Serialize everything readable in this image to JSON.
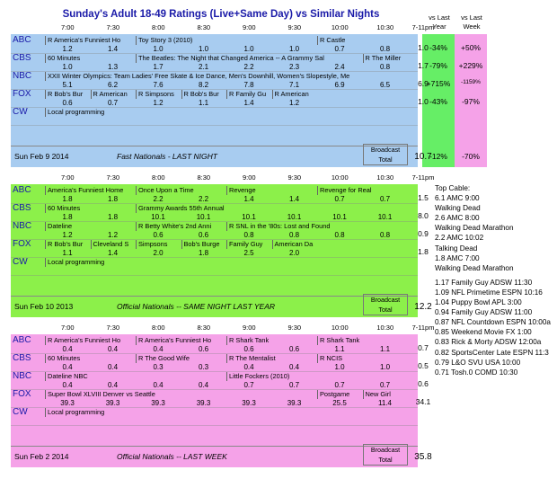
{
  "title": "Sunday's Adult 18-49 Ratings (Live+Same Day) vs Similar Nights",
  "times": [
    "7:00",
    "7:30",
    "8:00",
    "8:30",
    "9:00",
    "9:30",
    "10:00",
    "10:30",
    "7-11pm"
  ],
  "compare_headers": {
    "vs_last_year": "vs Last\nYear",
    "vs_last_week": "vs Last\nWeek"
  },
  "broadcast_total_label": "Broadcast\nTotal",
  "panels": [
    {
      "color": "#a8ccf0",
      "date": "Sun Feb 9 2014",
      "subtitle": "Fast Nationals - LAST NIGHT",
      "broadcast_total": "10.7",
      "total_vs_year": "-12%",
      "total_vs_week": "-70%",
      "rows": [
        {
          "network": "ABC",
          "programs": [
            {
              "name": "R America's Funniest Ho",
              "start": 0,
              "span": 2
            },
            {
              "name": "Toy Story 3 (2010)",
              "start": 2,
              "span": 4
            },
            {
              "name": "R Castle",
              "start": 6,
              "span": 2
            }
          ],
          "values": [
            "1.2",
            "1.4",
            "1.0",
            "1.0",
            "1.0",
            "1.0",
            "0.7",
            "0.8"
          ],
          "total": "1.0",
          "vs_year": "-34%",
          "vs_week": "+50%"
        },
        {
          "network": "CBS",
          "programs": [
            {
              "name": "60 Minutes",
              "start": 0,
              "span": 2
            },
            {
              "name": "The Beatles: The Night that Changed America -- A Grammy Sal",
              "start": 2,
              "span": 5
            },
            {
              "name": "R The Miller",
              "start": 7,
              "span": 1
            }
          ],
          "values": [
            "1.0",
            "1.3",
            "1.7",
            "2.1",
            "2.2",
            "2.3",
            "2.4",
            "0.8"
          ],
          "total": "1.7",
          "vs_year": "-79%",
          "vs_week": "+229%"
        },
        {
          "network": "NBC",
          "programs": [
            {
              "name": "XXII Winter Olympics: Team Ladies' Free Skate & Ice Dance, Men's Downhill, Women's Slopestyle, Me",
              "start": 0,
              "span": 8
            }
          ],
          "values": [
            "5.1",
            "6.2",
            "7.6",
            "8.2",
            "7.8",
            "7.1",
            "6.9",
            "6.5"
          ],
          "total": "6.9",
          "vs_year": "+715%",
          "vs_week": "-1159%"
        },
        {
          "network": "FOX",
          "programs": [
            {
              "name": "R Bob's Bur",
              "start": 0,
              "span": 1
            },
            {
              "name": "R American",
              "start": 1,
              "span": 1
            },
            {
              "name": "R Simpsons",
              "start": 2,
              "span": 1
            },
            {
              "name": "R Bob's Bur",
              "start": 3,
              "span": 1
            },
            {
              "name": "R Family Gu",
              "start": 4,
              "span": 1
            },
            {
              "name": "R American",
              "start": 5,
              "span": 1
            }
          ],
          "values": [
            "0.6",
            "0.7",
            "1.2",
            "1.1",
            "1.4",
            "1.2",
            "",
            ""
          ],
          "total": "1.0",
          "vs_year": "-43%",
          "vs_week": "-97%"
        },
        {
          "network": "CW",
          "programs": [
            {
              "name": "Local programming",
              "start": 0,
              "span": 8
            }
          ],
          "values": [
            "",
            "",
            "",
            "",
            "",
            "",
            "",
            ""
          ],
          "total": "",
          "vs_year": "",
          "vs_week": ""
        }
      ]
    },
    {
      "color": "#8cf04a",
      "date": "Sun Feb 10 2013",
      "subtitle": "Official Nationals -- SAME NIGHT LAST YEAR",
      "broadcast_total": "12.2",
      "rows": [
        {
          "network": "ABC",
          "programs": [
            {
              "name": "America's Funniest Home",
              "start": 0,
              "span": 2
            },
            {
              "name": "Once Upon a Time",
              "start": 2,
              "span": 2
            },
            {
              "name": "Revenge",
              "start": 4,
              "span": 2
            },
            {
              "name": "Revenge for Real",
              "start": 6,
              "span": 2
            }
          ],
          "values": [
            "1.8",
            "1.8",
            "2.2",
            "2.2",
            "1.4",
            "1.4",
            "0.7",
            "0.7"
          ],
          "total": "1.5"
        },
        {
          "network": "CBS",
          "programs": [
            {
              "name": "60 Minutes",
              "start": 0,
              "span": 2
            },
            {
              "name": "Grammy Awards 55th Annual",
              "start": 2,
              "span": 6
            }
          ],
          "values": [
            "1.8",
            "1.8",
            "10.1",
            "10.1",
            "10.1",
            "10.1",
            "10.1",
            "10.1"
          ],
          "total": "8.0"
        },
        {
          "network": "NBC",
          "programs": [
            {
              "name": "Dateline",
              "start": 0,
              "span": 2
            },
            {
              "name": "R Betty White's 2nd Anni",
              "start": 2,
              "span": 2
            },
            {
              "name": "R SNL in the '80s: Lost and Found",
              "start": 4,
              "span": 4
            }
          ],
          "values": [
            "1.2",
            "1.2",
            "0.6",
            "0.6",
            "0.8",
            "0.8",
            "0.8",
            "0.8"
          ],
          "total": "0.9"
        },
        {
          "network": "FOX",
          "programs": [
            {
              "name": "R Bob's Bur",
              "start": 0,
              "span": 1
            },
            {
              "name": "Cleveland S",
              "start": 1,
              "span": 1
            },
            {
              "name": "Simpsons",
              "start": 2,
              "span": 1
            },
            {
              "name": "Bob's Burge",
              "start": 3,
              "span": 1
            },
            {
              "name": "Family Guy",
              "start": 4,
              "span": 1
            },
            {
              "name": "American Da",
              "start": 5,
              "span": 1
            }
          ],
          "values": [
            "1.1",
            "1.4",
            "2.0",
            "1.8",
            "2.5",
            "2.0",
            "",
            ""
          ],
          "total": "1.8"
        },
        {
          "network": "CW",
          "programs": [
            {
              "name": "Local programming",
              "start": 0,
              "span": 8
            }
          ],
          "values": [
            "",
            "",
            "",
            "",
            "",
            "",
            "",
            ""
          ],
          "total": ""
        }
      ]
    },
    {
      "color": "#f5a2e8",
      "date": "Sun Feb 2 2014",
      "subtitle": "Official Nationals -- LAST WEEK",
      "broadcast_total": "35.8",
      "rows": [
        {
          "network": "ABC",
          "programs": [
            {
              "name": "R America's Funniest Ho",
              "start": 0,
              "span": 2
            },
            {
              "name": "R America's Funniest Ho",
              "start": 2,
              "span": 2
            },
            {
              "name": "R Shark Tank",
              "start": 4,
              "span": 2
            },
            {
              "name": "R Shark Tank",
              "start": 6,
              "span": 2
            }
          ],
          "values": [
            "0.4",
            "0.4",
            "0.4",
            "0.6",
            "0.6",
            "0.6",
            "1.1",
            "1.1"
          ],
          "total": "0.7"
        },
        {
          "network": "CBS",
          "programs": [
            {
              "name": "60 Minutes",
              "start": 0,
              "span": 2
            },
            {
              "name": "R The Good Wife",
              "start": 2,
              "span": 2
            },
            {
              "name": "R The Mentalist",
              "start": 4,
              "span": 2
            },
            {
              "name": "R NCIS",
              "start": 6,
              "span": 2
            }
          ],
          "values": [
            "0.4",
            "0.4",
            "0.3",
            "0.3",
            "0.4",
            "0.4",
            "1.0",
            "1.0"
          ],
          "total": "0.5"
        },
        {
          "network": "NBC",
          "programs": [
            {
              "name": "Dateline NBC",
              "start": 0,
              "span": 4
            },
            {
              "name": "Little Fockers (2010)",
              "start": 4,
              "span": 4
            }
          ],
          "values": [
            "0.4",
            "0.4",
            "0.4",
            "0.4",
            "0.7",
            "0.7",
            "0.7",
            "0.7"
          ],
          "total": "0.6"
        },
        {
          "network": "FOX",
          "programs": [
            {
              "name": "Super Bowl XLVIII Denver vs Seattle",
              "start": 0,
              "span": 6
            },
            {
              "name": "Postgame",
              "start": 6,
              "span": 1
            },
            {
              "name": "New Girl",
              "start": 7,
              "span": 1
            }
          ],
          "values": [
            "39.3",
            "39.3",
            "39.3",
            "39.3",
            "39.3",
            "39.3",
            "25.5",
            "11.4"
          ],
          "total": "34.1"
        },
        {
          "network": "CW",
          "programs": [
            {
              "name": "Local programming",
              "start": 0,
              "span": 8
            }
          ],
          "values": [
            "",
            "",
            "",
            "",
            "",
            "",
            "",
            ""
          ],
          "total": ""
        }
      ]
    }
  ],
  "cable": {
    "heading": "Top Cable:",
    "items": [
      "6.1 AMC 9:00",
      "Walking Dead",
      "2.6 AMC 8:00",
      "Walking Dead Marathon",
      "2.2 AMC 10:02",
      "Talking Dead",
      "1.8 AMC 7:00",
      "Walking Dead Marathon",
      "",
      "1.17 Family Guy ADSW 11:30",
      "1.09 NFL Primetime ESPN 10:16",
      "1.04 Puppy Bowl APL 3:00",
      "0.94 Family Guy ADSW 11:00",
      "0.87 NFL Countdown ESPN 10:00a",
      "0.85 Weekend Movie FX 1:00",
      "0.83 Rick & Morty ADSW 12:00a",
      "0.82 SportsCenter Late ESPN 11:3",
      "0.79 L&O SVU USA 10:00",
      "0.71 Tosh.0 COMD 10:30"
    ]
  },
  "colors": {
    "vs_year_green": "#66ee66",
    "vs_week_pink": "#f5a2e8",
    "title_blue": "#1a1aa8"
  }
}
